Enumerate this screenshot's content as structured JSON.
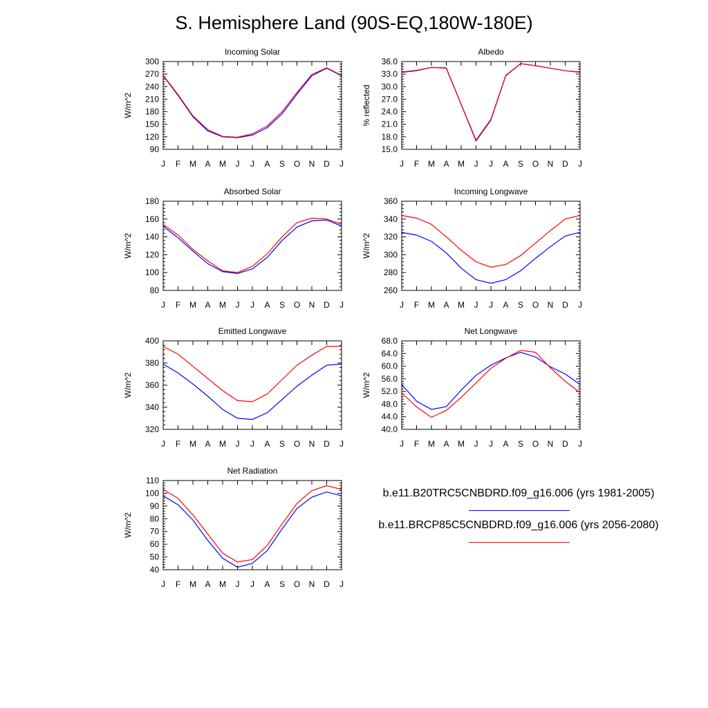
{
  "title": "S. Hemisphere Land (90S-EQ,180W-180E)",
  "colors": {
    "series_1": "#0000ff",
    "series_2": "#ff0000"
  },
  "legend": [
    {
      "label": "b.e11.B20TRC5CNBDRD.f09_g16.006 (yrs 1981-2005)",
      "color": "#0000ff"
    },
    {
      "label": "b.e11.BRCP85C5CNBDRD.f09_g16.006 (yrs 2056-2080)",
      "color": "#ff0000"
    }
  ],
  "chart_data": [
    {
      "type": "line",
      "title": "Incoming Solar",
      "ylabel": "W/m^2",
      "xlabel": "",
      "x": [
        "J",
        "F",
        "M",
        "A",
        "M",
        "J",
        "J",
        "A",
        "S",
        "O",
        "N",
        "D",
        "J"
      ],
      "ylim": [
        90,
        300
      ],
      "yticks": [
        "90",
        "120",
        "150",
        "180",
        "210",
        "240",
        "270",
        "300"
      ],
      "series": [
        {
          "values": [
            266,
            219,
            168,
            134,
            120,
            118,
            124,
            142,
            175,
            222,
            266,
            284,
            266
          ]
        },
        {
          "values": [
            267,
            221,
            170,
            137,
            121,
            119,
            127,
            146,
            180,
            226,
            269,
            285,
            267
          ]
        }
      ]
    },
    {
      "type": "line",
      "title": "Albedo",
      "ylabel": "% reflected",
      "xlabel": "",
      "x": [
        "J",
        "F",
        "M",
        "A",
        "M",
        "J",
        "J",
        "A",
        "S",
        "O",
        "N",
        "D",
        "J"
      ],
      "ylim": [
        15.0,
        36.0
      ],
      "yticks": [
        "15.0",
        "18.0",
        "21.0",
        "24.0",
        "27.0",
        "30.0",
        "33.0",
        "36.0"
      ],
      "series": [
        {
          "values": [
            33.4,
            33.8,
            34.6,
            34.4,
            25.7,
            17.0,
            22.0,
            32.6,
            35.5,
            35.0,
            34.4,
            33.8,
            33.4
          ]
        },
        {
          "values": [
            33.5,
            33.9,
            34.6,
            34.5,
            25.8,
            17.2,
            22.2,
            32.7,
            35.5,
            35.0,
            34.4,
            33.8,
            33.5
          ]
        }
      ]
    },
    {
      "type": "line",
      "title": "Absorbed Solar",
      "ylabel": "W/m^2",
      "xlabel": "",
      "x": [
        "J",
        "F",
        "M",
        "A",
        "M",
        "J",
        "J",
        "A",
        "S",
        "O",
        "N",
        "D",
        "J"
      ],
      "ylim": [
        80,
        180
      ],
      "yticks": [
        "80",
        "100",
        "120",
        "140",
        "160",
        "180"
      ],
      "series": [
        {
          "values": [
            152,
            139,
            124,
            110,
            101,
            99,
            104,
            117,
            136,
            151,
            158,
            159,
            152
          ]
        },
        {
          "values": [
            154,
            142,
            126,
            113,
            102,
            100,
            107,
            121,
            140,
            156,
            161,
            160,
            154
          ]
        }
      ]
    },
    {
      "type": "line",
      "title": "Incoming Longwave",
      "ylabel": "W/m^2",
      "xlabel": "",
      "x": [
        "J",
        "F",
        "M",
        "A",
        "M",
        "J",
        "J",
        "A",
        "S",
        "O",
        "N",
        "D",
        "J"
      ],
      "ylim": [
        260,
        360
      ],
      "yticks": [
        "260",
        "280",
        "300",
        "320",
        "340",
        "360"
      ],
      "series": [
        {
          "values": [
            325,
            322,
            315,
            302,
            285,
            272,
            268,
            272,
            282,
            296,
            309,
            321,
            325
          ]
        },
        {
          "values": [
            344,
            341,
            334,
            320,
            305,
            292,
            286,
            289,
            299,
            313,
            327,
            340,
            344
          ]
        }
      ]
    },
    {
      "type": "line",
      "title": "Emitted Longwave",
      "ylabel": "W/m^2",
      "xlabel": "",
      "x": [
        "J",
        "F",
        "M",
        "A",
        "M",
        "J",
        "J",
        "A",
        "S",
        "O",
        "N",
        "D",
        "J"
      ],
      "ylim": [
        320,
        400
      ],
      "yticks": [
        "320",
        "340",
        "360",
        "380",
        "400"
      ],
      "series": [
        {
          "values": [
            379,
            371,
            361,
            350,
            338,
            330,
            329,
            335,
            347,
            359,
            369,
            378,
            379
          ]
        },
        {
          "values": [
            395,
            388,
            377,
            366,
            355,
            346,
            345,
            352,
            365,
            378,
            387,
            395,
            395
          ]
        }
      ]
    },
    {
      "type": "line",
      "title": "Net Longwave",
      "ylabel": "W/m^2",
      "xlabel": "",
      "x": [
        "J",
        "F",
        "M",
        "A",
        "M",
        "J",
        "J",
        "A",
        "S",
        "O",
        "N",
        "D",
        "J"
      ],
      "ylim": [
        40.0,
        68.0
      ],
      "yticks": [
        "40.0",
        "44.0",
        "48.0",
        "52.0",
        "56.0",
        "60.0",
        "64.0",
        "68.0"
      ],
      "series": [
        {
          "values": [
            54.2,
            48.9,
            46.3,
            47.2,
            52.4,
            57.1,
            60.3,
            62.6,
            64.4,
            62.9,
            59.8,
            57.5,
            54.2
          ]
        },
        {
          "values": [
            51.6,
            47.1,
            43.8,
            46.0,
            50.1,
            54.7,
            59.3,
            62.5,
            65.0,
            64.4,
            59.5,
            55.2,
            51.6
          ]
        }
      ]
    },
    {
      "type": "line",
      "title": "Net Radiation",
      "ylabel": "W/m^2",
      "xlabel": "",
      "x": [
        "J",
        "F",
        "M",
        "A",
        "M",
        "J",
        "J",
        "A",
        "S",
        "O",
        "N",
        "D",
        "J"
      ],
      "ylim": [
        40,
        110
      ],
      "yticks": [
        "40",
        "50",
        "60",
        "70",
        "80",
        "90",
        "100",
        "110"
      ],
      "series": [
        {
          "values": [
            98,
            91,
            79,
            63,
            49,
            42,
            45,
            55,
            72,
            88,
            97,
            101,
            98
          ]
        },
        {
          "values": [
            103,
            96,
            83,
            68,
            53,
            46,
            48,
            59,
            76,
            92,
            102,
            106,
            103
          ]
        }
      ]
    }
  ]
}
